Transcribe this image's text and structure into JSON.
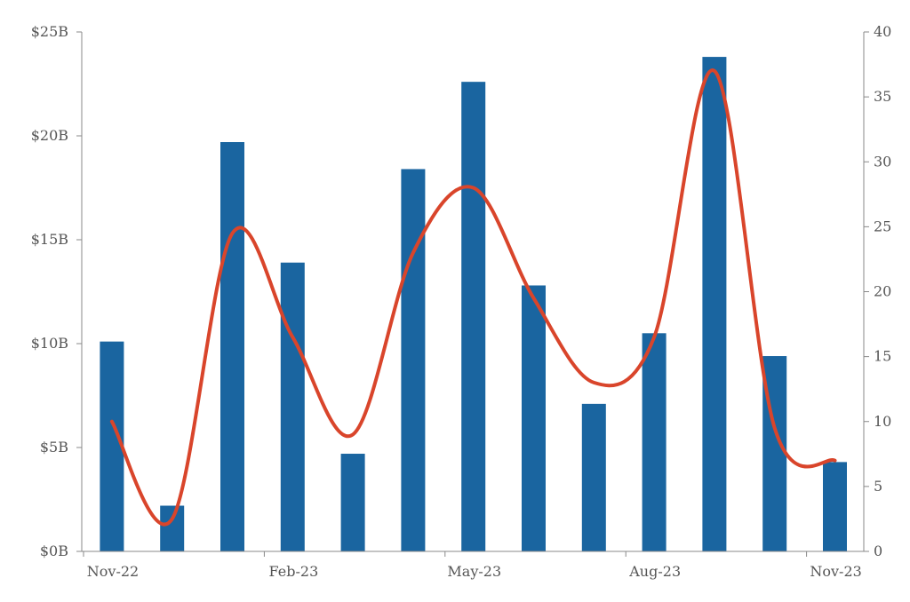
{
  "chart_data": {
    "type": "bar",
    "title": "",
    "xlabel": "",
    "ylabel": "",
    "y2label": "",
    "grid": false,
    "legend": "none",
    "categories": [
      "Nov-22",
      "Dec-22",
      "Jan-23",
      "Feb-23",
      "Mar-23",
      "Apr-23",
      "May-23",
      "Jun-23",
      "Jul-23",
      "Aug-23",
      "Sep-23",
      "Oct-23",
      "Nov-23"
    ],
    "x_tick_labels": [
      "Nov-22",
      "Feb-23",
      "May-23",
      "Aug-23",
      "Nov-23"
    ],
    "ylim": [
      0,
      25
    ],
    "y_ticks": [
      0,
      5,
      10,
      15,
      20,
      25
    ],
    "y_tick_labels": [
      "$0B",
      "$5B",
      "$10B",
      "$15B",
      "$20B",
      "$25B"
    ],
    "y2lim": [
      0,
      40
    ],
    "y2_ticks": [
      0,
      5,
      10,
      15,
      20,
      25,
      30,
      35,
      40
    ],
    "y2_tick_labels": [
      "0",
      "5",
      "10",
      "15",
      "20",
      "25",
      "30",
      "35",
      "40"
    ],
    "series": [
      {
        "type": "bar",
        "axis": "left",
        "color": "#1a65a0",
        "values": [
          10.1,
          2.2,
          19.7,
          13.9,
          4.7,
          18.4,
          22.6,
          12.8,
          7.1,
          10.5,
          23.8,
          9.4,
          4.3
        ]
      },
      {
        "type": "line",
        "axis": "right",
        "smooth": true,
        "color": "#d9452b",
        "values": [
          10,
          2.5,
          24.5,
          16.5,
          9,
          23,
          28,
          19.5,
          13,
          16.5,
          37,
          9.5,
          7
        ]
      }
    ]
  }
}
